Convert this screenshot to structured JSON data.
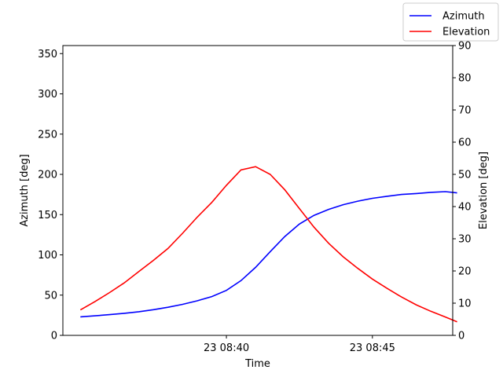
{
  "chart_data": {
    "type": "line",
    "title": "",
    "xlabel": "Time",
    "ylabel_left": "Azimuth [deg]",
    "ylabel_right": "Elevation [deg]",
    "x_ticks": [
      {
        "t": 10.0,
        "label": "23 08:40"
      },
      {
        "t": 15.0,
        "label": "23 08:45"
      }
    ],
    "xlim": [
      4.4,
      17.75
    ],
    "ylim_left": [
      0,
      360
    ],
    "ylim_right": [
      0,
      90
    ],
    "yticks_left": [
      0,
      50,
      100,
      150,
      200,
      250,
      300,
      350
    ],
    "yticks_right": [
      0,
      10,
      20,
      30,
      40,
      50,
      60,
      70,
      80,
      90
    ],
    "grid": false,
    "legend_position": "top-right",
    "time_unit_note": "",
    "series": [
      {
        "name": "Azimuth",
        "axis": "left",
        "color": "#0000ff",
        "x": [
          5.0,
          5.5,
          6.0,
          6.5,
          7.0,
          7.5,
          8.0,
          8.5,
          9.0,
          9.5,
          10.0,
          10.5,
          11.0,
          11.5,
          12.0,
          12.5,
          13.0,
          13.5,
          14.0,
          14.5,
          15.0,
          15.5,
          16.0,
          16.5,
          17.0,
          17.5,
          17.9
        ],
        "y": [
          23,
          24.3,
          25.8,
          27.4,
          29.4,
          31.9,
          34.9,
          38.5,
          42.9,
          48.2,
          55.9,
          68,
          84.5,
          104,
          122.8,
          138.2,
          149.1,
          156.5,
          162.3,
          166.7,
          170.2,
          172.8,
          175,
          176.2,
          177.7,
          178.5,
          177
        ]
      },
      {
        "name": "Elevation",
        "axis": "right",
        "color": "#ff0000",
        "x": [
          5.0,
          5.5,
          6.0,
          6.5,
          7.0,
          7.5,
          8.0,
          8.5,
          9.0,
          9.5,
          10.0,
          10.5,
          11.0,
          11.5,
          12.0,
          12.5,
          13.0,
          13.5,
          14.0,
          14.5,
          15.0,
          15.5,
          16.0,
          16.5,
          17.0,
          17.5,
          17.9
        ],
        "y": [
          7.9,
          10.5,
          13.3,
          16.3,
          19.8,
          23.3,
          27.0,
          31.7,
          36.7,
          41.3,
          46.6,
          51.4,
          52.4,
          50.0,
          45.2,
          39.4,
          33.6,
          28.6,
          24.4,
          20.8,
          17.5,
          14.6,
          11.9,
          9.5,
          7.5,
          5.7,
          4.2
        ]
      }
    ]
  }
}
